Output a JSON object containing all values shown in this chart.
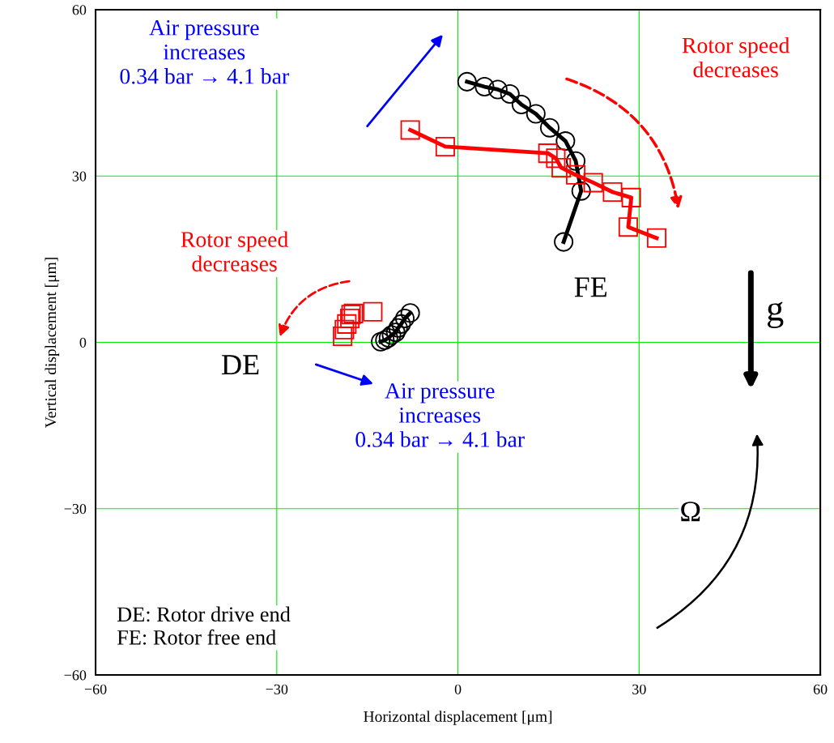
{
  "chart_data": {
    "type": "line",
    "xlabel": "Horizontal displacement [μm]",
    "ylabel": "Vertical displacement [μm]",
    "xlim": [
      -60,
      60
    ],
    "ylim": [
      -60,
      60
    ],
    "xticks": [
      {
        "value": -60,
        "label": "−60"
      },
      {
        "value": -30,
        "label": "−30"
      },
      0,
      30,
      60
    ],
    "yticks": [
      {
        "value": -60,
        "label": "−60"
      },
      {
        "value": -30,
        "label": "−30"
      },
      0,
      30,
      60
    ],
    "grid": true,
    "line_style": "solid",
    "series": [
      {
        "color": "#000000",
        "marker": "circle",
        "x": [
          1.5,
          4.4,
          6.6,
          8.6,
          10.5,
          12.9,
          15.2,
          17.8,
          19.5,
          20.4,
          17.5
        ],
        "values": [
          47.0,
          46.1,
          45.6,
          44.8,
          42.9,
          41.2,
          38.7,
          36.3,
          32.7,
          27.3,
          18.1
        ]
      },
      {
        "color": "#ff0000",
        "marker": "square",
        "x": [
          -7.9,
          -2.1,
          14.9,
          16.2,
          17.1,
          19.5,
          22.4,
          25.6,
          28.7,
          28.2,
          32.9
        ],
        "values": [
          38.3,
          35.3,
          34.1,
          33.2,
          31.5,
          30.2,
          28.8,
          27.1,
          26.1,
          20.8,
          18.8
        ]
      },
      {
        "color": "#000000",
        "marker": "circle",
        "x": [
          -12.8,
          -12.1,
          -11.5,
          -11.0,
          -10.3,
          -9.9,
          -9.4,
          -8.8,
          -7.9
        ],
        "values": [
          0.1,
          0.4,
          0.8,
          1.3,
          1.8,
          2.6,
          3.3,
          4.3,
          5.3
        ]
      },
      {
        "type": "scatter",
        "color": "#ff0000",
        "marker": "square",
        "x": [
          -19.1,
          -18.8,
          -18.4,
          -17.9,
          -17.7,
          -17.3,
          -14.1
        ],
        "values": [
          1.1,
          2.3,
          3.3,
          4.3,
          5.0,
          5.2,
          5.5
        ]
      }
    ],
    "annotations": [
      "Air pressure\nincreases\n0.34 bar → 4.1 bar",
      "Rotor speed\ndecreases",
      "Rotor speed\ndecreases",
      "FE",
      "DE",
      "Air pressure\nincreases\n0.34 bar → 4.1 bar",
      "g",
      "Ω",
      "DE: Rotor drive end\nFE: Rotor free end"
    ]
  }
}
